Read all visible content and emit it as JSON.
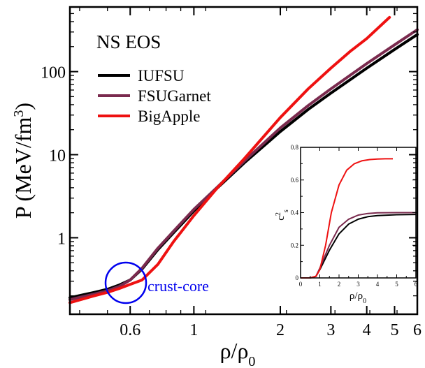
{
  "chart_data": [
    {
      "type": "line",
      "title": "NS EOS",
      "xlabel_base": "ρ/ρ",
      "xlabel_sub": "0",
      "ylabel_base": "P (MeV/fm",
      "ylabel_sup": "3",
      "ylabel_end": ")",
      "xscale": "log",
      "yscale": "log",
      "xlim": [
        0.37,
        6.0
      ],
      "ylim": [
        0.12,
        600
      ],
      "xticks": [
        {
          "v": 0.6,
          "label": "0.6"
        },
        {
          "v": 1,
          "label": "1"
        },
        {
          "v": 2,
          "label": "2"
        },
        {
          "v": 3,
          "label": "3"
        },
        {
          "v": 4,
          "label": "4"
        },
        {
          "v": 5,
          "label": "5"
        },
        {
          "v": 6,
          "label": "6"
        }
      ],
      "yticks": [
        {
          "v": 1,
          "label": "1"
        },
        {
          "v": 10,
          "label": "10"
        },
        {
          "v": 100,
          "label": "100"
        }
      ],
      "legend_position": "top-left",
      "annotation": {
        "label": "crust-core",
        "x": 0.6,
        "y": 0.33,
        "color": "#0000ee"
      },
      "series": [
        {
          "name": "IUFSU",
          "color": "#000000",
          "x": [
            0.37,
            0.45,
            0.5,
            0.55,
            0.6,
            0.66,
            0.75,
            0.85,
            1.0,
            1.2,
            1.5,
            2.0,
            2.5,
            3.0,
            4.0,
            5.0,
            6.0
          ],
          "y": [
            0.19,
            0.22,
            0.24,
            0.27,
            0.31,
            0.42,
            0.72,
            1.15,
            2.1,
            3.9,
            8.0,
            19,
            35,
            55,
            110,
            185,
            280
          ]
        },
        {
          "name": "FSUGarnet",
          "color": "#7a2a4e",
          "x": [
            0.37,
            0.45,
            0.5,
            0.55,
            0.6,
            0.66,
            0.75,
            0.85,
            1.0,
            1.2,
            1.5,
            2.0,
            2.5,
            3.0,
            4.0,
            5.0,
            6.0
          ],
          "y": [
            0.18,
            0.21,
            0.23,
            0.26,
            0.31,
            0.43,
            0.75,
            1.2,
            2.2,
            4.0,
            8.4,
            21,
            39,
            62,
            125,
            210,
            320
          ]
        },
        {
          "name": "BigApple",
          "color": "#ee1111",
          "x": [
            0.37,
            0.45,
            0.5,
            0.55,
            0.6,
            0.66,
            0.75,
            0.85,
            1.0,
            1.2,
            1.5,
            2.0,
            2.5,
            3.0,
            3.5,
            4.0,
            4.8
          ],
          "y": [
            0.165,
            0.2,
            0.22,
            0.245,
            0.275,
            0.31,
            0.48,
            0.9,
            1.85,
            3.9,
            9.0,
            28,
            62,
            110,
            175,
            250,
            450
          ]
        }
      ]
    },
    {
      "type": "line",
      "ylabel_base": "c",
      "ylabel_sup": "2",
      "ylabel_sub": "s",
      "xlabel_base": "ρ/ρ",
      "xlabel_sub": "0",
      "xlim": [
        0,
        6
      ],
      "ylim": [
        0,
        0.8
      ],
      "xticks": [
        {
          "v": 0,
          "label": "0"
        },
        {
          "v": 1,
          "label": "1"
        },
        {
          "v": 2,
          "label": "2"
        },
        {
          "v": 3,
          "label": "3"
        },
        {
          "v": 4,
          "label": "4"
        },
        {
          "v": 5,
          "label": "5"
        },
        {
          "v": 6,
          "label": "6"
        }
      ],
      "yticks": [
        {
          "v": 0,
          "label": "0"
        },
        {
          "v": 0.2,
          "label": "0.2"
        },
        {
          "v": 0.4,
          "label": "0.4"
        },
        {
          "v": 0.6,
          "label": "0.6"
        },
        {
          "v": 0.8,
          "label": "0.8"
        }
      ],
      "series": [
        {
          "name": "IUFSU",
          "color": "#000000",
          "x": [
            0,
            0.5,
            0.8,
            1.0,
            1.5,
            2.0,
            2.5,
            3.0,
            3.5,
            4.0,
            5.0,
            6.0
          ],
          "y": [
            0,
            0,
            0.01,
            0.05,
            0.17,
            0.27,
            0.33,
            0.36,
            0.375,
            0.382,
            0.387,
            0.389
          ]
        },
        {
          "name": "FSUGarnet",
          "color": "#7a2a4e",
          "x": [
            0,
            0.5,
            0.8,
            1.0,
            1.5,
            2.0,
            2.5,
            3.0,
            3.5,
            4.0,
            5.0,
            6.0
          ],
          "y": [
            0,
            0,
            0.01,
            0.06,
            0.2,
            0.31,
            0.36,
            0.385,
            0.395,
            0.399,
            0.4,
            0.4
          ]
        },
        {
          "name": "BigApple",
          "color": "#ee1111",
          "x": [
            0,
            0.5,
            0.8,
            1.0,
            1.3,
            1.6,
            2.0,
            2.4,
            2.8,
            3.2,
            3.6,
            4.0,
            4.4,
            4.8
          ],
          "y": [
            0,
            0,
            0.01,
            0.05,
            0.2,
            0.4,
            0.57,
            0.66,
            0.7,
            0.718,
            0.725,
            0.728,
            0.73,
            0.73
          ]
        }
      ]
    }
  ]
}
